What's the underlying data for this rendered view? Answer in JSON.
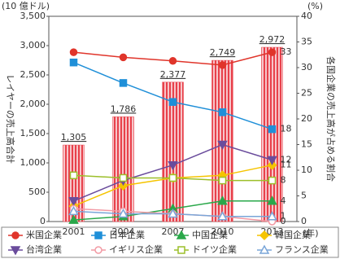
{
  "chart_data": {
    "type": "bar",
    "y_label": "(10 億ドル)",
    "y2_label": "(%)",
    "x_unit": "(年)",
    "y_title": "レイヤーの売上高合計",
    "y2_title": "各国企業の売上高が占める割合",
    "categories": [
      "2001",
      "2004",
      "2007",
      "2010",
      "2013"
    ],
    "values": [
      1305,
      1786,
      2377,
      2749,
      2972
    ],
    "value_labels": [
      "1,305",
      "1,786",
      "2,377",
      "2,749",
      "2,972"
    ],
    "color": "#e8414b",
    "ylim": [
      0,
      3500
    ],
    "yticks": [
      0,
      500,
      {
        "value": 1000,
        "label": "1,000"
      },
      {
        "value": 1500,
        "label": "1,500"
      },
      {
        "value": 2000,
        "label": "2,000"
      },
      {
        "value": 2500,
        "label": "2,500"
      },
      {
        "value": 3000,
        "label": "3,000"
      },
      {
        "value": 3500,
        "label": "3,500"
      }
    ],
    "y2lim": [
      0,
      40
    ],
    "y2ticks": [
      0,
      5,
      10,
      15,
      20,
      25,
      30,
      35,
      40
    ],
    "series": [
      {
        "name": "米国企業",
        "type": "line",
        "axis": "y2",
        "color": "#e0352b",
        "marker": "circle",
        "filled": true,
        "values": [
          33,
          32,
          31.3,
          30.5,
          33
        ]
      },
      {
        "name": "日本企業",
        "type": "line",
        "axis": "y2",
        "color": "#1f8fd8",
        "marker": "square",
        "filled": true,
        "values": [
          31,
          27,
          23.3,
          21.3,
          18
        ]
      },
      {
        "name": "中国企業",
        "type": "line",
        "axis": "y2",
        "color": "#2aa84a",
        "marker": "triangle",
        "filled": true,
        "values": [
          0.3,
          1,
          2.5,
          4,
          4
        ]
      },
      {
        "name": "韓国企業",
        "type": "line",
        "axis": "y2",
        "color": "#f5c400",
        "marker": "diamond",
        "filled": true,
        "values": [
          3,
          7,
          8.5,
          9,
          11
        ]
      },
      {
        "name": "台湾企業",
        "type": "line",
        "axis": "y2",
        "color": "#6a4c9c",
        "marker": "triangle-down",
        "filled": true,
        "values": [
          4,
          8,
          11,
          15,
          12
        ]
      },
      {
        "name": "イギリス企業",
        "type": "line",
        "axis": "y2",
        "color": "#f29aa4",
        "marker": "circle",
        "filled": false,
        "values": [
          2.5,
          2,
          1.5,
          1,
          0
        ]
      },
      {
        "name": "ドイツ企業",
        "type": "line",
        "axis": "y2",
        "color": "#9cbf2a",
        "marker": "square",
        "filled": false,
        "values": [
          9,
          8.5,
          8.5,
          8,
          8
        ]
      },
      {
        "name": "フランス企業",
        "type": "line",
        "axis": "y2",
        "color": "#7aa6d8",
        "marker": "triangle",
        "filled": false,
        "values": [
          2,
          1.5,
          1.5,
          1,
          1
        ]
      }
    ]
  }
}
